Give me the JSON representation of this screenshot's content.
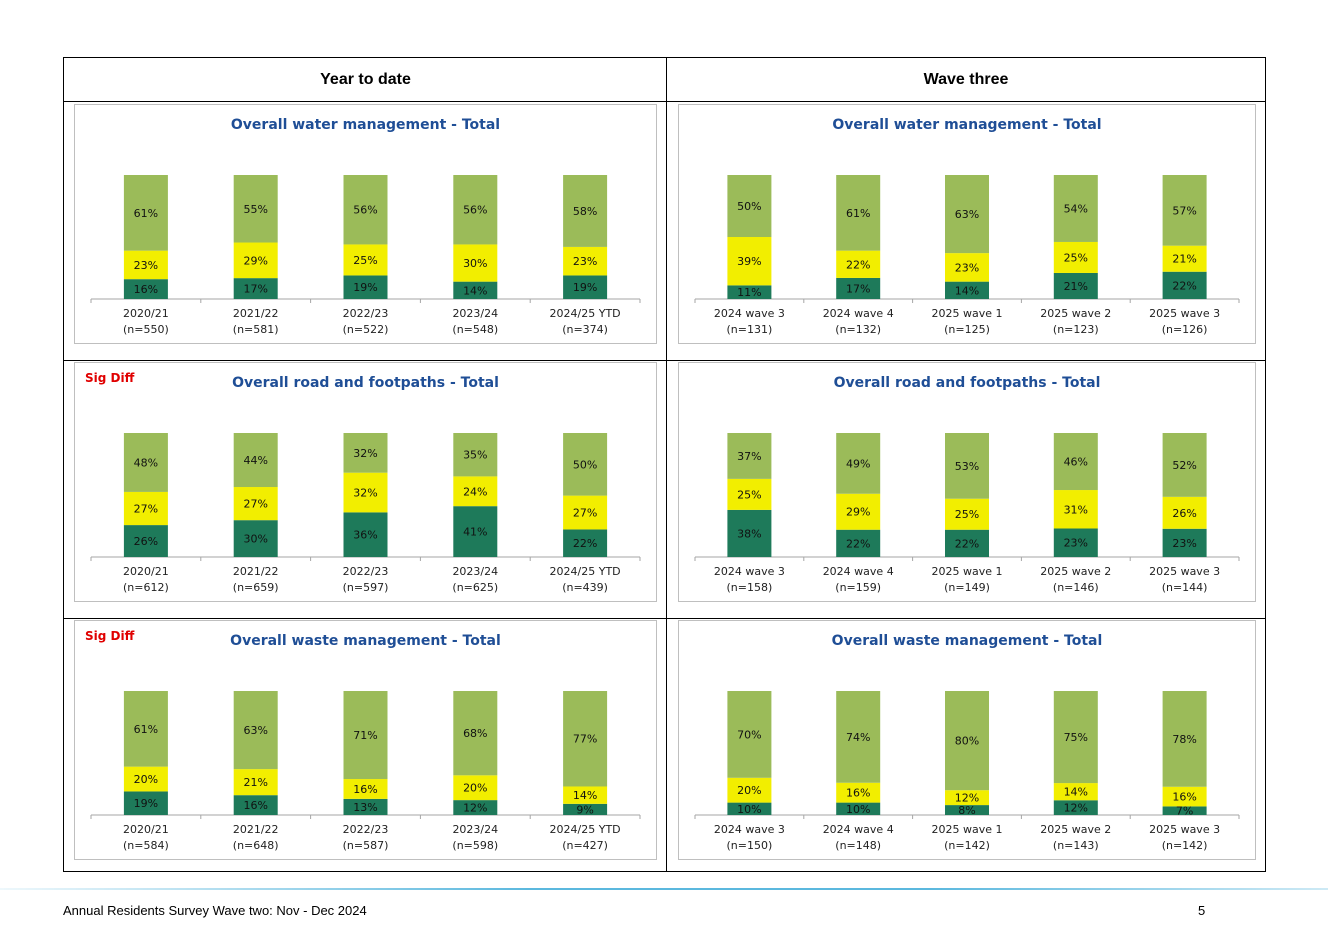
{
  "headers": {
    "left": "Year to date",
    "right": "Wave three"
  },
  "footer": {
    "text": "Annual Residents Survey Wave two: Nov - Dec 2024",
    "page": "5"
  },
  "colors": {
    "top": "#9bbb59",
    "mid": "#f2ee00",
    "bottom": "#1e7a5a",
    "title": "#1f4e96",
    "sig": "#e00000"
  },
  "chart_data": [
    {
      "type": "bar",
      "stacked": true,
      "title": "Overall water management - Total",
      "sig_label": "",
      "categories": [
        "2020/21",
        "2021/22",
        "2022/23",
        "2023/24",
        "2024/25 YTD"
      ],
      "sublabels": [
        "(n=550)",
        "(n=581)",
        "(n=522)",
        "(n=548)",
        "(n=374)"
      ],
      "series": [
        {
          "values": [
            16,
            17,
            19,
            14,
            19
          ]
        },
        {
          "values": [
            23,
            29,
            25,
            30,
            23
          ]
        },
        {
          "values": [
            61,
            55,
            56,
            56,
            58
          ]
        }
      ]
    },
    {
      "type": "bar",
      "stacked": true,
      "title": "Overall water management - Total",
      "sig_label": "",
      "categories": [
        "2024 wave 3",
        "2024 wave 4",
        "2025 wave 1",
        "2025 wave 2",
        "2025 wave 3"
      ],
      "sublabels": [
        "(n=131)",
        "(n=132)",
        "(n=125)",
        "(n=123)",
        "(n=126)"
      ],
      "series": [
        {
          "values": [
            11,
            17,
            14,
            21,
            22
          ]
        },
        {
          "values": [
            39,
            22,
            23,
            25,
            21
          ]
        },
        {
          "values": [
            50,
            61,
            63,
            54,
            57
          ]
        }
      ]
    },
    {
      "type": "bar",
      "stacked": true,
      "title": "Overall road and footpaths - Total",
      "sig_label": "Sig Diff",
      "categories": [
        "2020/21",
        "2021/22",
        "2022/23",
        "2023/24",
        "2024/25 YTD"
      ],
      "sublabels": [
        "(n=612)",
        "(n=659)",
        "(n=597)",
        "(n=625)",
        "(n=439)"
      ],
      "series": [
        {
          "values": [
            26,
            30,
            36,
            41,
            22
          ]
        },
        {
          "values": [
            27,
            27,
            32,
            24,
            27
          ]
        },
        {
          "values": [
            48,
            44,
            32,
            35,
            50
          ]
        }
      ]
    },
    {
      "type": "bar",
      "stacked": true,
      "title": "Overall road and footpaths - Total",
      "sig_label": "",
      "categories": [
        "2024 wave 3",
        "2024 wave 4",
        "2025 wave 1",
        "2025 wave 2",
        "2025 wave 3"
      ],
      "sublabels": [
        "(n=158)",
        "(n=159)",
        "(n=149)",
        "(n=146)",
        "(n=144)"
      ],
      "series": [
        {
          "values": [
            38,
            22,
            22,
            23,
            23
          ]
        },
        {
          "values": [
            25,
            29,
            25,
            31,
            26
          ]
        },
        {
          "values": [
            37,
            49,
            53,
            46,
            52
          ]
        }
      ]
    },
    {
      "type": "bar",
      "stacked": true,
      "title": "Overall waste management - Total",
      "sig_label": "Sig Diff",
      "categories": [
        "2020/21",
        "2021/22",
        "2022/23",
        "2023/24",
        "2024/25 YTD"
      ],
      "sublabels": [
        "(n=584)",
        "(n=648)",
        "(n=587)",
        "(n=598)",
        "(n=427)"
      ],
      "series": [
        {
          "values": [
            19,
            16,
            13,
            12,
            9
          ]
        },
        {
          "values": [
            20,
            21,
            16,
            20,
            14
          ]
        },
        {
          "values": [
            61,
            63,
            71,
            68,
            77
          ]
        }
      ]
    },
    {
      "type": "bar",
      "stacked": true,
      "title": "Overall waste management - Total",
      "sig_label": "",
      "categories": [
        "2024 wave 3",
        "2024 wave 4",
        "2025 wave 1",
        "2025 wave 2",
        "2025 wave 3"
      ],
      "sublabels": [
        "(n=150)",
        "(n=148)",
        "(n=142)",
        "(n=143)",
        "(n=142)"
      ],
      "series": [
        {
          "values": [
            10,
            10,
            8,
            12,
            7
          ]
        },
        {
          "values": [
            20,
            16,
            12,
            14,
            16
          ]
        },
        {
          "values": [
            70,
            74,
            80,
            75,
            78
          ]
        }
      ]
    }
  ]
}
